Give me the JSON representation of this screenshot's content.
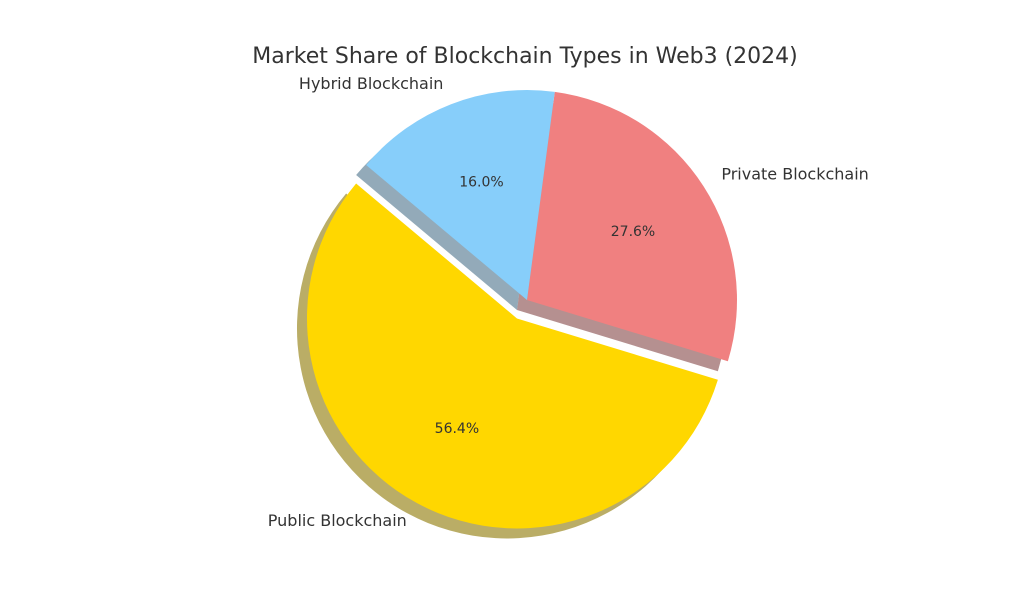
{
  "chart_data": {
    "type": "pie",
    "title": "Market Share of Blockchain Types in Web3 (2024)",
    "categories": [
      "Public Blockchain",
      "Private Blockchain",
      "Hybrid Blockchain"
    ],
    "values": [
      56.4,
      27.6,
      16.0
    ],
    "value_labels": [
      "56.4%",
      "27.6%",
      "16.0%"
    ],
    "colors": [
      "#ffd700",
      "#f08080",
      "#87cefa"
    ],
    "explode": [
      0.1,
      0,
      0
    ],
    "startangle": 140,
    "shadow": true
  }
}
